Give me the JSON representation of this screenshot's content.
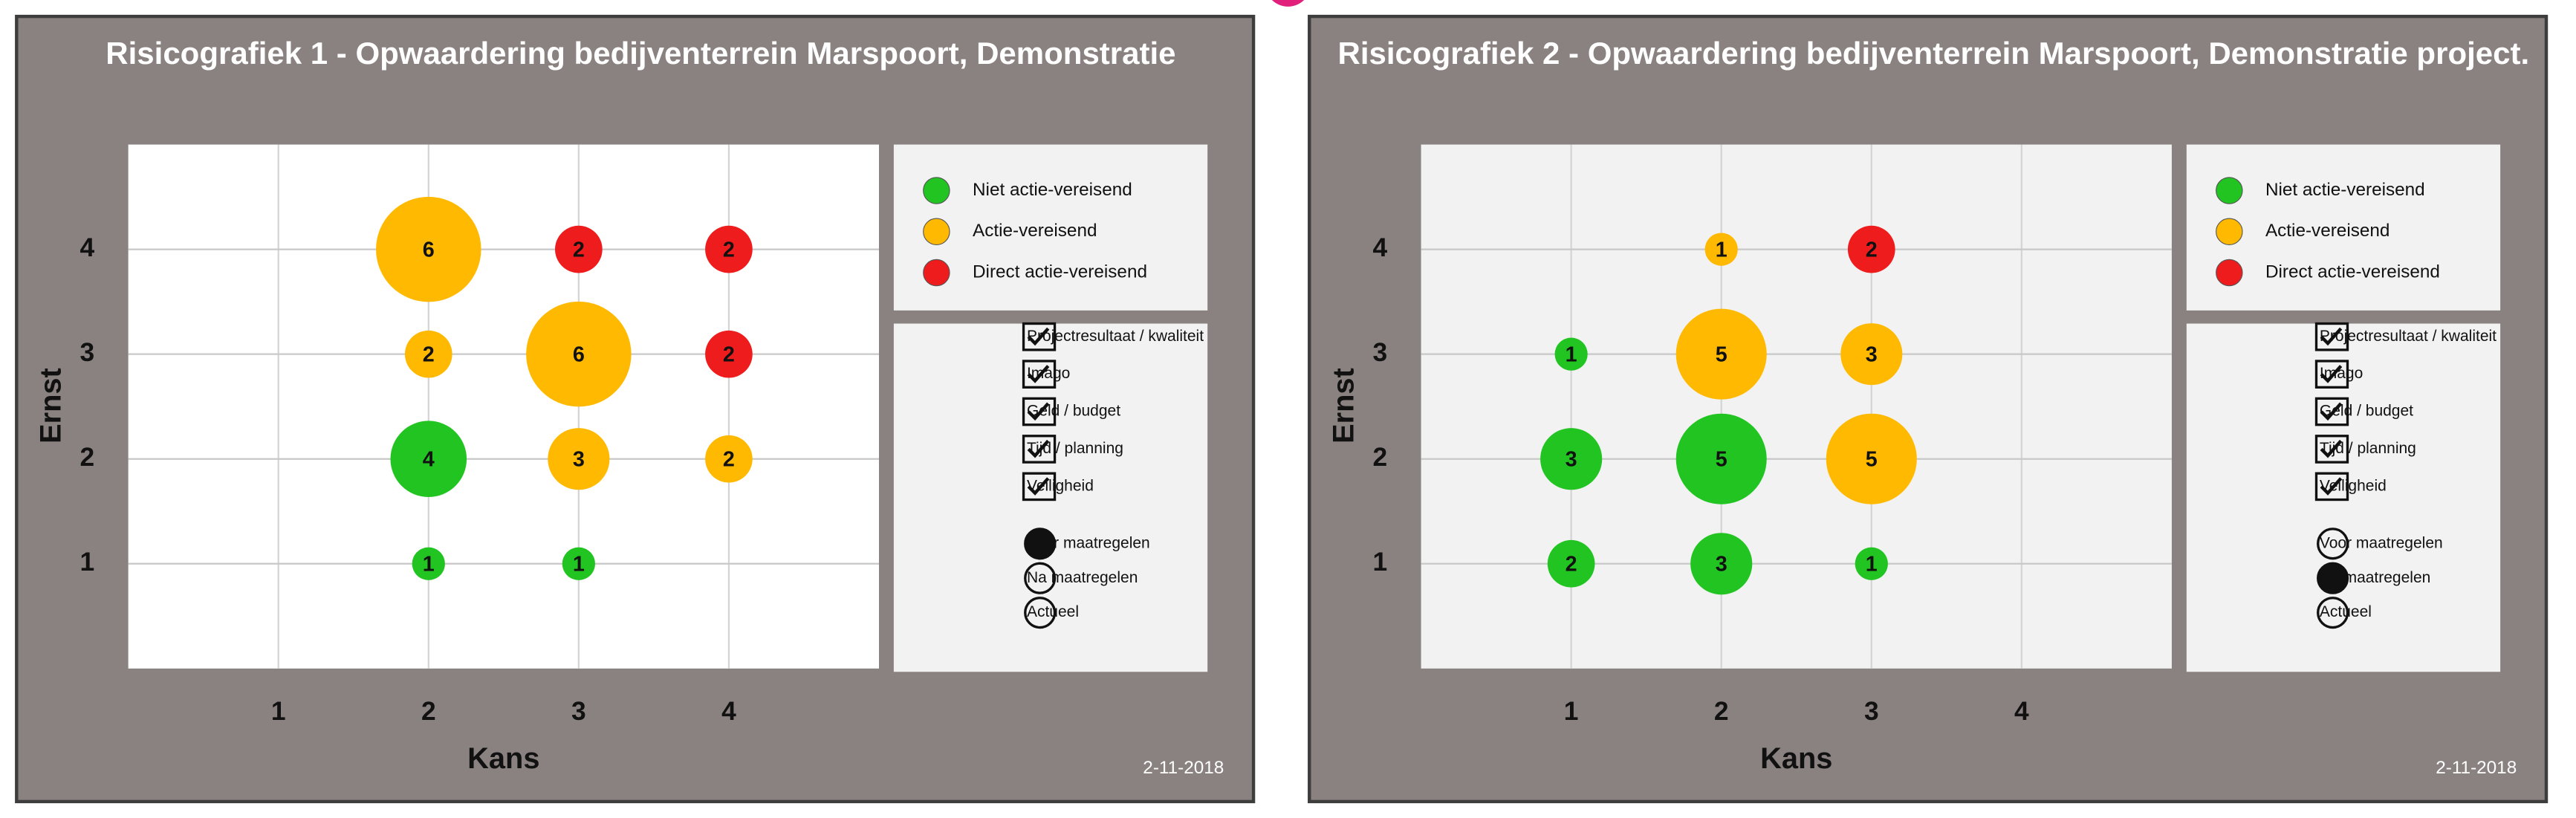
{
  "chart_data": [
    {
      "type": "bubble",
      "title": "Risicografiek 1 - Opwaardering bedijventerrein Marspoort, Demonstratie",
      "x_label": "Kans",
      "y_label": "Ernst",
      "xlim": [
        0,
        5
      ],
      "ylim": [
        0,
        5
      ],
      "xticks": [
        1,
        2,
        3,
        4
      ],
      "yticks": [
        1,
        2,
        3,
        4
      ],
      "grid": true,
      "plot_background": "#ffffff",
      "date": "2-11-2018",
      "series": [
        {
          "name": "Niet actie-vereisend",
          "color": "#22c422",
          "x": [
            2,
            2,
            3
          ],
          "y": [
            2,
            1,
            1
          ],
          "sizes": [
            4,
            1,
            1
          ]
        },
        {
          "name": "Actie-vereisend",
          "color": "#ffb900",
          "x": [
            2,
            2,
            3,
            3,
            4
          ],
          "y": [
            4,
            3,
            3,
            2,
            2
          ],
          "sizes": [
            6,
            2,
            6,
            3,
            2
          ]
        },
        {
          "name": "Direct actie-vereisend",
          "color": "#ee1c1c",
          "x": [
            3,
            4,
            4
          ],
          "y": [
            4,
            4,
            3
          ],
          "sizes": [
            2,
            2,
            2
          ]
        }
      ],
      "filters": [
        {
          "label": "Projectresultaat / kwaliteit",
          "checked": true
        },
        {
          "label": "Imago",
          "checked": true
        },
        {
          "label": "Geld / budget",
          "checked": true
        },
        {
          "label": "Tijd / planning",
          "checked": true
        },
        {
          "label": "Veiligheid",
          "checked": true
        }
      ],
      "views": [
        {
          "label": "Voor maatregelen",
          "selected": true
        },
        {
          "label": "Na maatregelen",
          "selected": false
        },
        {
          "label": "Actueel",
          "selected": false
        }
      ]
    },
    {
      "type": "bubble",
      "title": "Risicografiek 2 - Opwaardering bedijventerrein Marspoort, Demonstratie project.",
      "x_label": "Kans",
      "y_label": "Ernst",
      "xlim": [
        0,
        5
      ],
      "ylim": [
        0,
        5
      ],
      "xticks": [
        1,
        2,
        3,
        4
      ],
      "yticks": [
        1,
        2,
        3,
        4
      ],
      "grid": true,
      "plot_background": "#f2f2f2",
      "date": "2-11-2018",
      "series": [
        {
          "name": "Niet actie-vereisend",
          "color": "#22c422",
          "x": [
            1,
            1,
            2,
            1,
            2,
            3
          ],
          "y": [
            3,
            2,
            2,
            1,
            1,
            1
          ],
          "sizes": [
            1,
            3,
            5,
            2,
            3,
            1
          ]
        },
        {
          "name": "Actie-vereisend",
          "color": "#ffb900",
          "x": [
            2,
            2,
            3,
            3
          ],
          "y": [
            4,
            3,
            3,
            2
          ],
          "sizes": [
            1,
            5,
            3,
            5
          ]
        },
        {
          "name": "Direct actie-vereisend",
          "color": "#ee1c1c",
          "x": [
            3
          ],
          "y": [
            4
          ],
          "sizes": [
            2
          ]
        }
      ],
      "filters": [
        {
          "label": "Projectresultaat / kwaliteit",
          "checked": true
        },
        {
          "label": "Imago",
          "checked": true
        },
        {
          "label": "Geld / budget",
          "checked": true
        },
        {
          "label": "Tijd / planning",
          "checked": true
        },
        {
          "label": "Veiligheid",
          "checked": true
        }
      ],
      "views": [
        {
          "label": "Voor maatregelen",
          "selected": false
        },
        {
          "label": "Na maatregelen",
          "selected": true
        },
        {
          "label": "Actueel",
          "selected": false
        }
      ]
    }
  ]
}
